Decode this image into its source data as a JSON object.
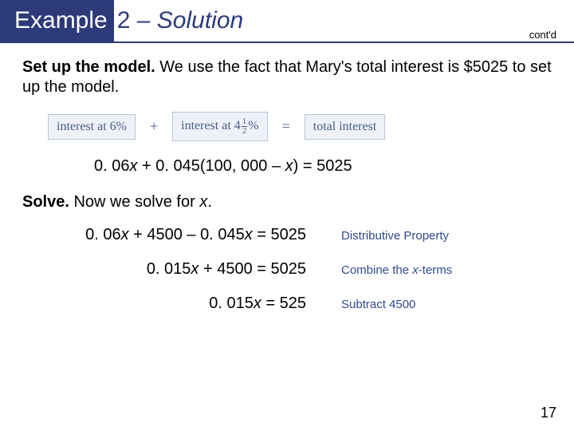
{
  "colors": {
    "header_bg": "#2d3a7a",
    "header_border": "#2d3a7a",
    "text": "#000000",
    "box_border": "#b9c5d9",
    "box_bg": "#eef2f8",
    "box_text": "#4a5b8a",
    "reason_text": "#2f4a8f"
  },
  "header": {
    "left": "Example",
    "number_dash": "2 –",
    "solution": "Solution",
    "contd": "cont'd"
  },
  "para1": {
    "bold": "Set up the model.",
    "rest": " We use the fact that Mary's total interest is $5025 to set up the model."
  },
  "diagram": {
    "box1_a": "interest at 6%",
    "plus": "+",
    "box2_a": "interest at 4",
    "box2_frac_n": "1",
    "box2_frac_d": "2",
    "box2_b": "%",
    "eq": "=",
    "box3": "total interest"
  },
  "main_equation": "0. 06x + 0. 045(100, 000 – x) = 5025",
  "solve": {
    "bold": "Solve.",
    "rest": " Now we solve for x."
  },
  "steps": [
    {
      "eq": "0. 06x + 4500 – 0. 045x = 5025",
      "reason": "Distributive Property"
    },
    {
      "eq": "0. 015x + 4500 = 5025",
      "reason": "Combine the x-terms"
    },
    {
      "eq": "0. 015x = 525",
      "reason": "Subtract 4500"
    }
  ],
  "page_number": "17"
}
